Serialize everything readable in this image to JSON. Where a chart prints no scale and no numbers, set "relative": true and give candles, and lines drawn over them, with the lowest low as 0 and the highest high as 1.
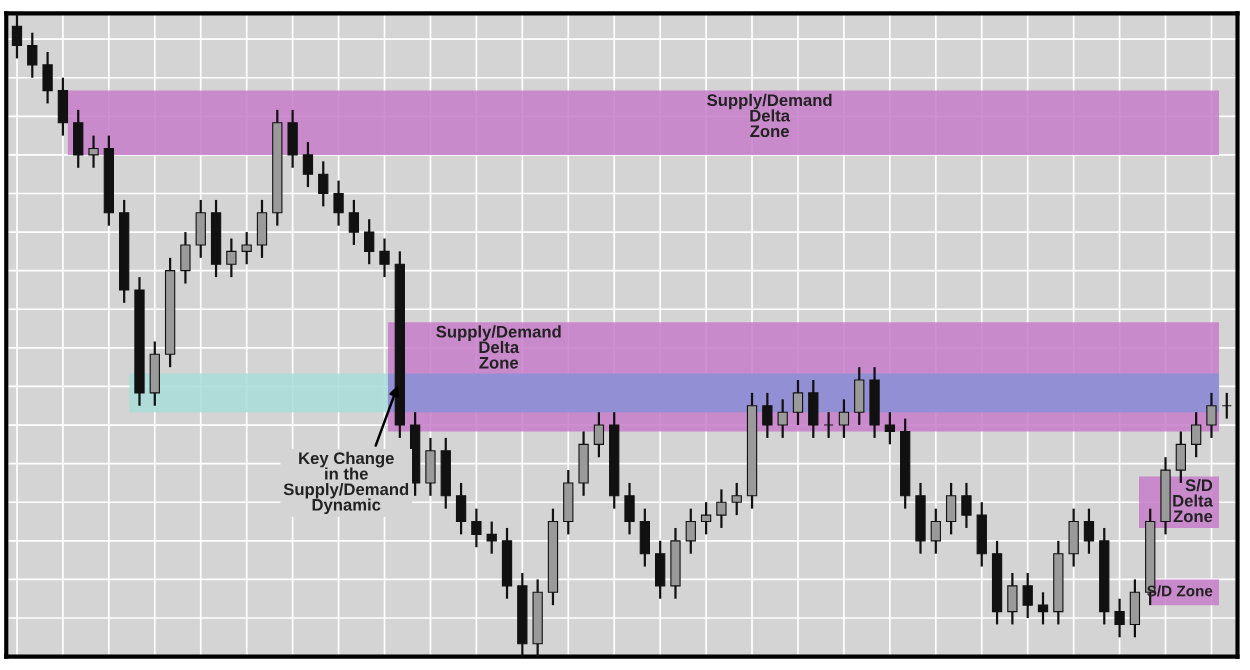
{
  "chart_data": {
    "type": "candlestick",
    "relative": true,
    "grid": true,
    "tick_labels": false,
    "color": "#111111",
    "categories": [
      null,
      null,
      null,
      null,
      null,
      null,
      null,
      null,
      null,
      null,
      null,
      null,
      null,
      null,
      null,
      null,
      null,
      null,
      null,
      null,
      null,
      null,
      null,
      null,
      null,
      null,
      null,
      null,
      null,
      null,
      null,
      null,
      null,
      null,
      null,
      null,
      null,
      null,
      null,
      null,
      null,
      null,
      null,
      null,
      null,
      null,
      null,
      null,
      null,
      null,
      null,
      null,
      null,
      null,
      null,
      null,
      null,
      null,
      null,
      null,
      null,
      null,
      null,
      null,
      null,
      null,
      null,
      null,
      null,
      null,
      null,
      null,
      null,
      null,
      null,
      null,
      null,
      null,
      null,
      null
    ],
    "ohlc": [
      [
        0.98,
        1.0,
        0.93,
        0.95
      ],
      [
        0.95,
        0.97,
        0.9,
        0.92
      ],
      [
        0.92,
        0.94,
        0.86,
        0.88
      ],
      [
        0.88,
        0.9,
        0.81,
        0.83
      ],
      [
        0.83,
        0.85,
        0.76,
        0.78
      ],
      [
        0.78,
        0.81,
        0.76,
        0.79
      ],
      [
        0.79,
        0.81,
        0.67,
        0.69
      ],
      [
        0.69,
        0.71,
        0.55,
        0.57
      ],
      [
        0.57,
        0.59,
        0.39,
        0.41
      ],
      [
        0.41,
        0.49,
        0.39,
        0.47
      ],
      [
        0.47,
        0.62,
        0.45,
        0.6
      ],
      [
        0.6,
        0.66,
        0.58,
        0.64
      ],
      [
        0.64,
        0.71,
        0.62,
        0.69
      ],
      [
        0.69,
        0.71,
        0.59,
        0.61
      ],
      [
        0.61,
        0.65,
        0.59,
        0.63
      ],
      [
        0.63,
        0.66,
        0.61,
        0.64
      ],
      [
        0.64,
        0.71,
        0.62,
        0.69
      ],
      [
        0.69,
        0.85,
        0.67,
        0.83
      ],
      [
        0.83,
        0.85,
        0.76,
        0.78
      ],
      [
        0.78,
        0.8,
        0.73,
        0.75
      ],
      [
        0.75,
        0.77,
        0.7,
        0.72
      ],
      [
        0.72,
        0.74,
        0.67,
        0.69
      ],
      [
        0.69,
        0.71,
        0.64,
        0.66
      ],
      [
        0.66,
        0.68,
        0.61,
        0.63
      ],
      [
        0.63,
        0.65,
        0.59,
        0.61
      ],
      [
        0.61,
        0.63,
        0.34,
        0.36
      ],
      [
        0.36,
        0.38,
        0.25,
        0.27
      ],
      [
        0.27,
        0.34,
        0.25,
        0.32
      ],
      [
        0.32,
        0.34,
        0.23,
        0.25
      ],
      [
        0.25,
        0.27,
        0.19,
        0.21
      ],
      [
        0.21,
        0.23,
        0.17,
        0.19
      ],
      [
        0.19,
        0.21,
        0.16,
        0.18
      ],
      [
        0.18,
        0.2,
        0.09,
        0.11
      ],
      [
        0.11,
        0.13,
        0.0,
        0.02
      ],
      [
        0.02,
        0.12,
        0.0,
        0.1
      ],
      [
        0.1,
        0.23,
        0.08,
        0.21
      ],
      [
        0.21,
        0.29,
        0.19,
        0.27
      ],
      [
        0.27,
        0.35,
        0.25,
        0.33
      ],
      [
        0.33,
        0.38,
        0.31,
        0.36
      ],
      [
        0.36,
        0.38,
        0.23,
        0.25
      ],
      [
        0.25,
        0.27,
        0.19,
        0.21
      ],
      [
        0.21,
        0.23,
        0.14,
        0.16
      ],
      [
        0.16,
        0.18,
        0.09,
        0.11
      ],
      [
        0.11,
        0.2,
        0.09,
        0.18
      ],
      [
        0.18,
        0.23,
        0.16,
        0.21
      ],
      [
        0.21,
        0.24,
        0.19,
        0.22
      ],
      [
        0.22,
        0.26,
        0.2,
        0.24
      ],
      [
        0.24,
        0.27,
        0.22,
        0.25
      ],
      [
        0.25,
        0.41,
        0.23,
        0.39
      ],
      [
        0.39,
        0.41,
        0.34,
        0.36
      ],
      [
        0.36,
        0.4,
        0.34,
        0.38
      ],
      [
        0.38,
        0.43,
        0.36,
        0.41
      ],
      [
        0.41,
        0.43,
        0.34,
        0.36
      ],
      [
        0.36,
        0.38,
        0.34,
        0.36
      ],
      [
        0.36,
        0.4,
        0.34,
        0.38
      ],
      [
        0.38,
        0.45,
        0.36,
        0.43
      ],
      [
        0.43,
        0.45,
        0.34,
        0.36
      ],
      [
        0.36,
        0.38,
        0.33,
        0.35
      ],
      [
        0.35,
        0.37,
        0.23,
        0.25
      ],
      [
        0.25,
        0.27,
        0.16,
        0.18
      ],
      [
        0.18,
        0.23,
        0.16,
        0.21
      ],
      [
        0.21,
        0.27,
        0.19,
        0.25
      ],
      [
        0.25,
        0.27,
        0.2,
        0.22
      ],
      [
        0.22,
        0.24,
        0.14,
        0.16
      ],
      [
        0.16,
        0.18,
        0.05,
        0.07
      ],
      [
        0.07,
        0.13,
        0.05,
        0.11
      ],
      [
        0.11,
        0.13,
        0.06,
        0.08
      ],
      [
        0.08,
        0.1,
        0.05,
        0.07
      ],
      [
        0.07,
        0.18,
        0.05,
        0.16
      ],
      [
        0.16,
        0.23,
        0.14,
        0.21
      ],
      [
        0.21,
        0.23,
        0.16,
        0.18
      ],
      [
        0.18,
        0.2,
        0.05,
        0.07
      ],
      [
        0.07,
        0.09,
        0.03,
        0.05
      ],
      [
        0.05,
        0.12,
        0.03,
        0.1
      ],
      [
        0.1,
        0.23,
        0.08,
        0.21
      ],
      [
        0.21,
        0.31,
        0.19,
        0.29
      ],
      [
        0.29,
        0.35,
        0.27,
        0.33
      ],
      [
        0.33,
        0.38,
        0.31,
        0.36
      ],
      [
        0.36,
        0.41,
        0.34,
        0.39
      ],
      [
        0.39,
        0.41,
        0.37,
        0.39
      ]
    ],
    "bands": [
      {
        "axis": "y",
        "from": 0.78,
        "to": 0.88,
        "label": "Supply/Demand\nDelta\nZone",
        "color": "#c77dc9"
      },
      {
        "axis": "y",
        "from": 0.35,
        "to": 0.52,
        "label": "Supply/Demand\nDelta\nZone",
        "color": "#c77dc9"
      },
      {
        "axis": "y",
        "from": 0.38,
        "to": 0.44,
        "color": "#a8dcd9"
      },
      {
        "axis": "y",
        "from": 0.38,
        "to": 0.44,
        "color": "#8a8fd6"
      },
      {
        "axis": "y",
        "from": 0.2,
        "to": 0.28,
        "label": "S/D\nDelta\nZone",
        "color": "#c77dc9"
      },
      {
        "axis": "y",
        "from": 0.08,
        "to": 0.12,
        "label": "S/D Zone",
        "color": "#c77dc9"
      }
    ],
    "annotations": [
      "Key Change\nin the\nSupply/Demand\nDynamic"
    ]
  }
}
